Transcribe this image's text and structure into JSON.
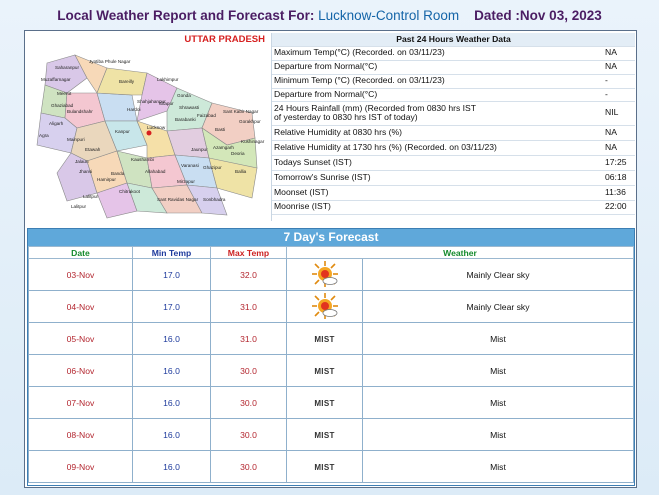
{
  "header": {
    "prefix": "Local Weather Report and Forecast For:",
    "location": "Lucknow-Control Room",
    "dated": "Dated :Nov 03, 2023"
  },
  "map": {
    "title": "UTTAR PRADESH",
    "districts": [
      "Saharanpur",
      "Muzaffarnagar",
      "Jyotiba Phule Nagar",
      "Meerut",
      "Ghaziabad",
      "Bulandshahr",
      "Aligarh",
      "Agra",
      "Mainpuri",
      "Etawah",
      "Bareilly",
      "Shahjahanpur",
      "Lakhimpur",
      "Sitapur",
      "Hardoi",
      "Kanpur",
      "Lucknow",
      "Barabanki",
      "Faizabad",
      "Gonda",
      "Basti",
      "Sant Kabir Nagar",
      "Gorakhpur",
      "Kushinagar",
      "Deoria",
      "Azamgarh",
      "Jaunpur",
      "Varanasi",
      "Ghazipur",
      "Ballia",
      "Allahabad",
      "Mirzapur",
      "Sonbhadra",
      "Chitrakoot",
      "Sant Ravidas Nagar",
      "Jhansi",
      "Lalitpur",
      "Banda",
      "Hamirpur",
      "Jalaun",
      "Shrawasti",
      "Lalitpur",
      "Kaushambi"
    ]
  },
  "past24": {
    "heading": "Past 24 Hours Weather Data",
    "rows": [
      {
        "label": "Maximum Temp(°C) (Recorded. on 03/11/23)",
        "value": "NA"
      },
      {
        "label": "Departure from Normal(°C)",
        "value": "NA"
      },
      {
        "label": "Minimum Temp (°C) (Recorded. on 03/11/23)",
        "value": "-"
      },
      {
        "label": "Departure from Normal(°C)",
        "value": "-"
      },
      {
        "label": "24 Hours Rainfall (mm) (Recorded from 0830 hrs IST\nof yesterday to 0830 hrs IST of today)",
        "value": "NIL"
      },
      {
        "label": "Relative Humidity at 0830 hrs (%)",
        "value": "NA"
      },
      {
        "label": "Relative Humidity at 1730 hrs (%) (Recorded. on 03/11/23)",
        "value": "NA"
      },
      {
        "label": "Todays Sunset (IST)",
        "value": "17:25"
      },
      {
        "label": "Tomorrow's Sunrise (IST)",
        "value": "06:18"
      },
      {
        "label": "Moonset (IST)",
        "value": "11:36"
      },
      {
        "label": "Moonrise (IST)",
        "value": "22:00"
      }
    ]
  },
  "forecast": {
    "title": "7 Day's Forecast",
    "headers": {
      "date": "Date",
      "min": "Min Temp",
      "max": "Max Temp",
      "weather": "Weather"
    },
    "rows": [
      {
        "date": "03-Nov",
        "min": "17.0",
        "max": "32.0",
        "icon": "sun-cloud-icon",
        "icon_text": "",
        "weather": "Mainly Clear sky"
      },
      {
        "date": "04-Nov",
        "min": "17.0",
        "max": "31.0",
        "icon": "sun-cloud-icon",
        "icon_text": "",
        "weather": "Mainly Clear sky"
      },
      {
        "date": "05-Nov",
        "min": "16.0",
        "max": "31.0",
        "icon": "mist-icon",
        "icon_text": "MIST",
        "weather": "Mist"
      },
      {
        "date": "06-Nov",
        "min": "16.0",
        "max": "30.0",
        "icon": "mist-icon",
        "icon_text": "MIST",
        "weather": "Mist"
      },
      {
        "date": "07-Nov",
        "min": "16.0",
        "max": "30.0",
        "icon": "mist-icon",
        "icon_text": "MIST",
        "weather": "Mist"
      },
      {
        "date": "08-Nov",
        "min": "16.0",
        "max": "30.0",
        "icon": "mist-icon",
        "icon_text": "MIST",
        "weather": "Mist"
      },
      {
        "date": "09-Nov",
        "min": "16.0",
        "max": "30.0",
        "icon": "mist-icon",
        "icon_text": "MIST",
        "weather": "Mist"
      }
    ]
  },
  "colors": {
    "title": "#4b1d63",
    "location": "#1565a8",
    "forecast_bar": "#5fa8da",
    "date": "#b3262f",
    "min": "#1d3a9c"
  }
}
